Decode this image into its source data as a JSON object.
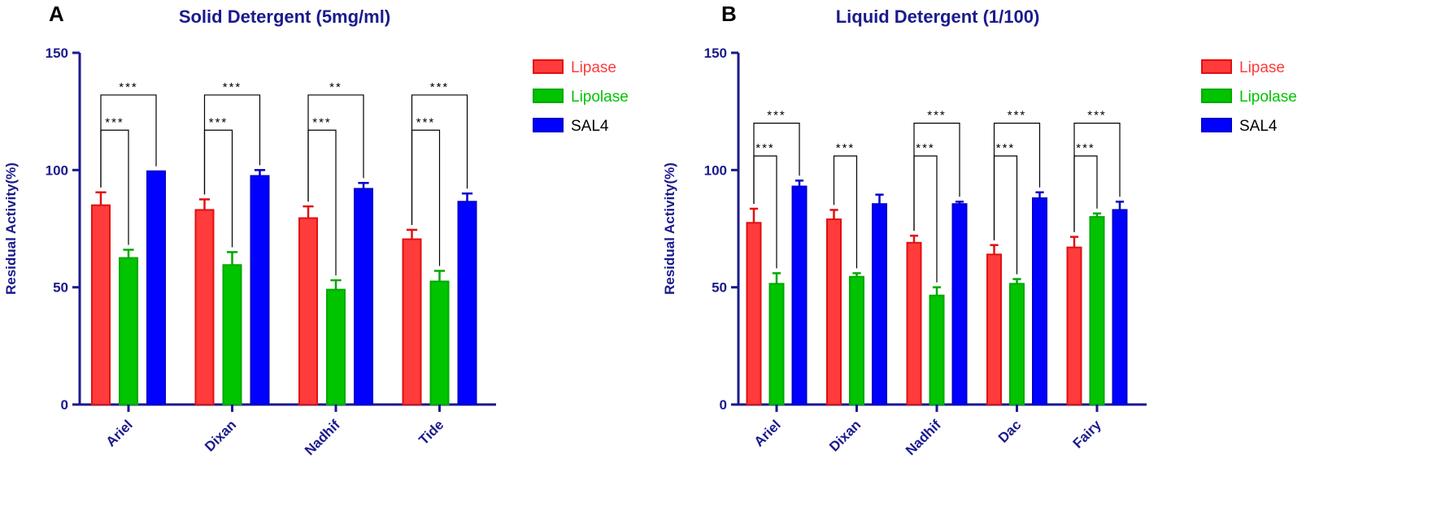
{
  "chart_data": [
    {
      "type": "bar",
      "panel": "A",
      "title": "Solid Detergent (5mg/ml)",
      "xlabel": "",
      "ylabel": "Residual Activity(%)",
      "ylim": [
        0,
        150
      ],
      "yticks": [
        0,
        50,
        100,
        150
      ],
      "categories": [
        "Ariel",
        "Dixan",
        "Nadhif",
        "Tide"
      ],
      "series": [
        {
          "name": "Lipase",
          "color": "#ff3b3b",
          "values": [
            85,
            83,
            79.5,
            70.5
          ],
          "errors": [
            5.5,
            4.5,
            5,
            4
          ]
        },
        {
          "name": "Lipolase",
          "color": "#00c400",
          "values": [
            62.5,
            59.5,
            49,
            52.5
          ],
          "errors": [
            3.5,
            5.5,
            4,
            4.5
          ]
        },
        {
          "name": "SAL4",
          "color": "#0000ff",
          "values": [
            99.5,
            97.5,
            92,
            86.5
          ],
          "errors": [
            0,
            2.5,
            2.5,
            3.5
          ]
        }
      ],
      "significance": [
        {
          "category": "Ariel",
          "lower": "***",
          "upper": "***"
        },
        {
          "category": "Dixan",
          "lower": "***",
          "upper": "***"
        },
        {
          "category": "Nadhif",
          "lower": "***",
          "upper": "**"
        },
        {
          "category": "Tide",
          "lower": "***",
          "upper": "***"
        }
      ],
      "sig_levels": [
        117,
        132
      ],
      "legend_position": "top-right"
    },
    {
      "type": "bar",
      "panel": "B",
      "title": "Liquid Detergent (1/100)",
      "xlabel": "",
      "ylabel": "Residual Activity(%)",
      "ylim": [
        0,
        150
      ],
      "yticks": [
        0,
        50,
        100,
        150
      ],
      "categories": [
        "Ariel",
        "Dixan",
        "Nadhif",
        "Dac",
        "Fairy"
      ],
      "series": [
        {
          "name": "Lipase",
          "color": "#ff3b3b",
          "values": [
            77.5,
            79,
            69,
            64,
            67
          ],
          "errors": [
            6,
            4,
            3,
            4,
            4.5
          ]
        },
        {
          "name": "Lipolase",
          "color": "#00c400",
          "values": [
            51.5,
            54.5,
            46.5,
            51.5,
            80
          ],
          "errors": [
            4.5,
            1.5,
            3.5,
            2,
            1.5
          ]
        },
        {
          "name": "SAL4",
          "color": "#0000ff",
          "values": [
            93,
            85.5,
            85.5,
            88,
            83
          ],
          "errors": [
            2.5,
            4,
            1,
            2.5,
            3.5
          ]
        }
      ],
      "significance": [
        {
          "category": "Ariel",
          "lower": "***",
          "upper": "***"
        },
        {
          "category": "Dixan",
          "lower": "***",
          "upper": ""
        },
        {
          "category": "Nadhif",
          "lower": "***",
          "upper": "***"
        },
        {
          "category": "Dac",
          "lower": "***",
          "upper": "***"
        },
        {
          "category": "Fairy",
          "lower": "***",
          "upper": "***"
        }
      ],
      "sig_levels": [
        106,
        120
      ],
      "legend_position": "top-right"
    }
  ]
}
